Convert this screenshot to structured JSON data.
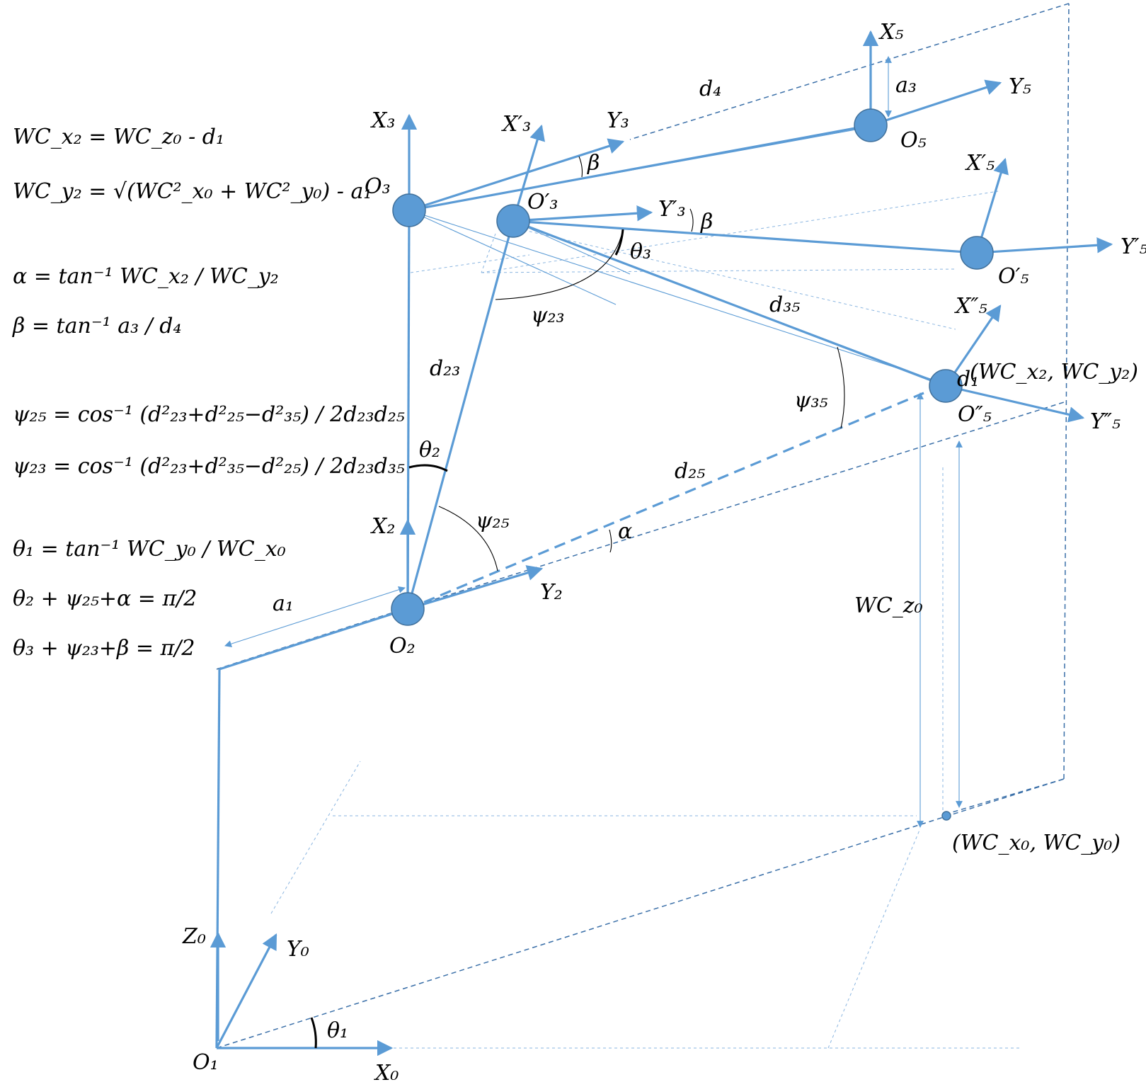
{
  "colors": {
    "line": "#5b9bd5",
    "dashed": "#3a6fa8",
    "node": "#5b9bd5",
    "text": "#000000"
  },
  "labels": {
    "X0": "X₀",
    "Y0": "Y₀",
    "Z0": "Z₀",
    "O1": "O₁",
    "theta1": "θ₁",
    "a1": "a₁",
    "O2": "O₂",
    "X2": "X₂",
    "Y2": "Y₂",
    "O3": "O₃",
    "X3": "X₃",
    "Y3": "Y₃",
    "O3p": "O′₃",
    "X3p": "X′₃",
    "Y3p": "Y′₃",
    "O5": "O₅",
    "X5": "X₅",
    "Y5": "Y₅",
    "O5p": "O′₅",
    "X5p": "X′₅",
    "Y5p": "Y′₅",
    "O5pp": "O″₅",
    "X5pp": "X″₅",
    "Y5pp": "Y″₅",
    "d1": "d₁",
    "d4": "d₄",
    "a3": "a₃",
    "d23": "d₂₃",
    "d25": "d₂₅",
    "d35": "d₃₅",
    "theta2": "θ₂",
    "theta3": "θ₃",
    "psi23": "ψ₂₃",
    "psi25": "ψ₂₅",
    "psi35": "ψ₃₅",
    "alpha": "α",
    "beta1": "β",
    "beta2": "β",
    "WCz0": "WC_z₀",
    "WC2": "(WC_x₂, WC_y₂)",
    "WC0": "(WC_x₀, WC_y₀)"
  },
  "equations": [
    "WC_x₂ = WC_z₀ -  d₁",
    "WC_y₂ = √(WC²_x₀ + WC²_y₀) -  a₁",
    "α = tan⁻¹ WC_x₂ / WC_y₂",
    "β = tan⁻¹ a₃ / d₄",
    "ψ₂₅ = cos⁻¹ (d²₂₃+d²₂₅−d²₃₅) / 2d₂₃d₂₅",
    "ψ₂₃ = cos⁻¹ (d²₂₃+d²₃₅−d²₂₅) / 2d₂₃d₃₅",
    "θ₁ = tan⁻¹ WC_y₀ / WC_x₀",
    "θ₂ + ψ₂₅+α = π/2",
    "θ₃ + ψ₂₃+β = π/2"
  ]
}
